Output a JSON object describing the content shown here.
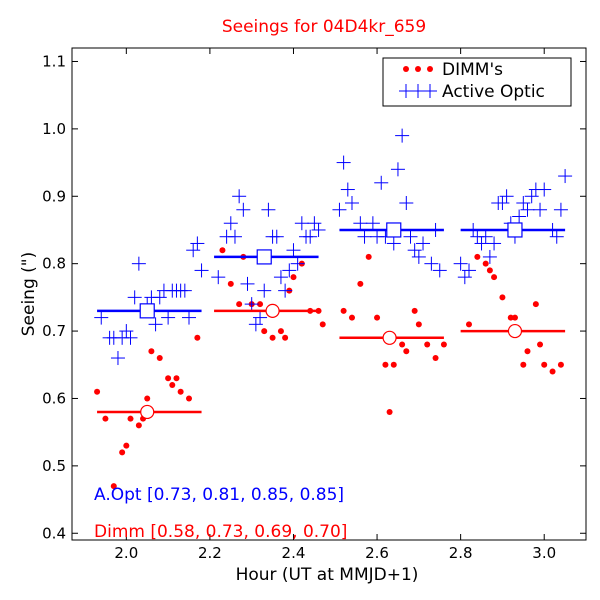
{
  "chart_data": {
    "type": "scatter",
    "title": "Seeings for 04D4kr_659",
    "xlabel": "Hour (UT at MMJD+1)",
    "ylabel": "Seeing (\")",
    "xlim": [
      1.87,
      3.1
    ],
    "ylim": [
      0.39,
      1.12
    ],
    "xticks": [
      2.0,
      2.2,
      2.4,
      2.6,
      2.8,
      3.0
    ],
    "xtick_labels": [
      "2.0",
      "2.2",
      "2.4",
      "2.6",
      "2.8",
      "3.0"
    ],
    "yticks": [
      0.4,
      0.5,
      0.6,
      0.7,
      0.8,
      0.9,
      1.0,
      1.1
    ],
    "ytick_labels": [
      "0.4",
      "0.5",
      "0.6",
      "0.7",
      "0.8",
      "0.9",
      "1.0",
      "1.1"
    ],
    "legend_position": "top-right",
    "colors": {
      "dimm": "#ff0000",
      "active_optic": "#0000ff",
      "title": "#ff0000",
      "axes": "#000000"
    },
    "series": [
      {
        "name": "DIMM's",
        "marker": "dot",
        "color": "#ff0000",
        "points": [
          [
            1.93,
            0.61
          ],
          [
            1.95,
            0.57
          ],
          [
            1.97,
            0.47
          ],
          [
            1.99,
            0.52
          ],
          [
            2.0,
            0.53
          ],
          [
            2.01,
            0.57
          ],
          [
            2.03,
            0.56
          ],
          [
            2.04,
            0.57
          ],
          [
            2.05,
            0.6
          ],
          [
            2.06,
            0.67
          ],
          [
            2.08,
            0.66
          ],
          [
            2.1,
            0.63
          ],
          [
            2.11,
            0.62
          ],
          [
            2.12,
            0.63
          ],
          [
            2.13,
            0.61
          ],
          [
            2.15,
            0.6
          ],
          [
            2.17,
            0.69
          ],
          [
            2.23,
            0.82
          ],
          [
            2.25,
            0.77
          ],
          [
            2.27,
            0.74
          ],
          [
            2.28,
            0.81
          ],
          [
            2.3,
            0.74
          ],
          [
            2.32,
            0.74
          ],
          [
            2.33,
            0.7
          ],
          [
            2.35,
            0.69
          ],
          [
            2.37,
            0.7
          ],
          [
            2.38,
            0.69
          ],
          [
            2.39,
            0.76
          ],
          [
            2.4,
            0.78
          ],
          [
            2.42,
            0.8
          ],
          [
            2.44,
            0.73
          ],
          [
            2.46,
            0.73
          ],
          [
            2.47,
            0.71
          ],
          [
            2.52,
            0.73
          ],
          [
            2.54,
            0.72
          ],
          [
            2.56,
            0.77
          ],
          [
            2.58,
            0.81
          ],
          [
            2.6,
            0.72
          ],
          [
            2.62,
            0.65
          ],
          [
            2.63,
            0.58
          ],
          [
            2.64,
            0.65
          ],
          [
            2.66,
            0.68
          ],
          [
            2.67,
            0.67
          ],
          [
            2.69,
            0.73
          ],
          [
            2.7,
            0.71
          ],
          [
            2.72,
            0.68
          ],
          [
            2.74,
            0.66
          ],
          [
            2.76,
            0.68
          ],
          [
            2.82,
            0.71
          ],
          [
            2.84,
            0.81
          ],
          [
            2.86,
            0.8
          ],
          [
            2.87,
            0.79
          ],
          [
            2.88,
            0.78
          ],
          [
            2.9,
            0.75
          ],
          [
            2.92,
            0.72
          ],
          [
            2.93,
            0.72
          ],
          [
            2.95,
            0.65
          ],
          [
            2.96,
            0.67
          ],
          [
            2.98,
            0.74
          ],
          [
            2.99,
            0.68
          ],
          [
            3.0,
            0.65
          ],
          [
            3.02,
            0.64
          ],
          [
            3.04,
            0.65
          ]
        ]
      },
      {
        "name": "Active Optic",
        "marker": "plus",
        "color": "#0000ff",
        "points": [
          [
            1.94,
            0.72
          ],
          [
            1.96,
            0.69
          ],
          [
            1.97,
            0.69
          ],
          [
            1.98,
            0.66
          ],
          [
            1.99,
            0.69
          ],
          [
            2.0,
            0.7
          ],
          [
            2.01,
            0.69
          ],
          [
            2.02,
            0.75
          ],
          [
            2.03,
            0.8
          ],
          [
            2.04,
            0.73
          ],
          [
            2.05,
            0.74
          ],
          [
            2.06,
            0.75
          ],
          [
            2.07,
            0.71
          ],
          [
            2.08,
            0.75
          ],
          [
            2.09,
            0.76
          ],
          [
            2.1,
            0.72
          ],
          [
            2.11,
            0.76
          ],
          [
            2.12,
            0.76
          ],
          [
            2.13,
            0.76
          ],
          [
            2.14,
            0.76
          ],
          [
            2.15,
            0.72
          ],
          [
            2.16,
            0.82
          ],
          [
            2.17,
            0.83
          ],
          [
            2.18,
            0.79
          ],
          [
            2.22,
            0.78
          ],
          [
            2.24,
            0.84
          ],
          [
            2.25,
            0.86
          ],
          [
            2.26,
            0.84
          ],
          [
            2.27,
            0.9
          ],
          [
            2.28,
            0.88
          ],
          [
            2.29,
            0.77
          ],
          [
            2.3,
            0.74
          ],
          [
            2.31,
            0.71
          ],
          [
            2.32,
            0.72
          ],
          [
            2.33,
            0.76
          ],
          [
            2.34,
            0.88
          ],
          [
            2.35,
            0.84
          ],
          [
            2.36,
            0.84
          ],
          [
            2.37,
            0.78
          ],
          [
            2.38,
            0.76
          ],
          [
            2.39,
            0.79
          ],
          [
            2.4,
            0.82
          ],
          [
            2.41,
            0.8
          ],
          [
            2.42,
            0.86
          ],
          [
            2.43,
            0.84
          ],
          [
            2.44,
            0.84
          ],
          [
            2.45,
            0.86
          ],
          [
            2.46,
            0.85
          ],
          [
            2.51,
            0.88
          ],
          [
            2.52,
            0.95
          ],
          [
            2.53,
            0.91
          ],
          [
            2.54,
            0.89
          ],
          [
            2.56,
            0.86
          ],
          [
            2.57,
            0.84
          ],
          [
            2.59,
            0.86
          ],
          [
            2.6,
            0.84
          ],
          [
            2.61,
            0.92
          ],
          [
            2.62,
            0.84
          ],
          [
            2.64,
            0.83
          ],
          [
            2.65,
            0.94
          ],
          [
            2.66,
            0.99
          ],
          [
            2.67,
            0.89
          ],
          [
            2.68,
            0.84
          ],
          [
            2.69,
            0.82
          ],
          [
            2.7,
            0.81
          ],
          [
            2.71,
            0.83
          ],
          [
            2.73,
            0.8
          ],
          [
            2.74,
            0.85
          ],
          [
            2.75,
            0.79
          ],
          [
            2.8,
            0.8
          ],
          [
            2.81,
            0.78
          ],
          [
            2.82,
            0.79
          ],
          [
            2.83,
            0.85
          ],
          [
            2.84,
            0.84
          ],
          [
            2.85,
            0.83
          ],
          [
            2.86,
            0.84
          ],
          [
            2.87,
            0.81
          ],
          [
            2.88,
            0.83
          ],
          [
            2.89,
            0.89
          ],
          [
            2.9,
            0.89
          ],
          [
            2.91,
            0.9
          ],
          [
            2.92,
            0.86
          ],
          [
            2.93,
            0.84
          ],
          [
            2.94,
            0.87
          ],
          [
            2.95,
            0.89
          ],
          [
            2.96,
            0.88
          ],
          [
            2.97,
            0.9
          ],
          [
            2.98,
            0.91
          ],
          [
            2.99,
            0.88
          ],
          [
            3.0,
            0.91
          ],
          [
            3.02,
            0.85
          ],
          [
            3.03,
            0.84
          ],
          [
            3.04,
            0.88
          ],
          [
            3.05,
            0.93
          ]
        ]
      }
    ],
    "binned_medians": [
      {
        "name": "DIMM median",
        "color": "#ff0000",
        "marker": "circle",
        "bins": [
          {
            "x_start": 1.93,
            "x_end": 2.18,
            "x_center": 2.05,
            "value": 0.58
          },
          {
            "x_start": 2.21,
            "x_end": 2.46,
            "x_center": 2.35,
            "value": 0.73
          },
          {
            "x_start": 2.51,
            "x_end": 2.76,
            "x_center": 2.63,
            "value": 0.69
          },
          {
            "x_start": 2.8,
            "x_end": 3.05,
            "x_center": 2.93,
            "value": 0.7
          }
        ]
      },
      {
        "name": "Active Optic median",
        "color": "#0000ff",
        "marker": "square",
        "bins": [
          {
            "x_start": 1.93,
            "x_end": 2.18,
            "x_center": 2.05,
            "value": 0.73
          },
          {
            "x_start": 2.21,
            "x_end": 2.46,
            "x_center": 2.33,
            "value": 0.81
          },
          {
            "x_start": 2.51,
            "x_end": 2.76,
            "x_center": 2.64,
            "value": 0.85
          },
          {
            "x_start": 2.8,
            "x_end": 3.05,
            "x_center": 2.93,
            "value": 0.85
          }
        ]
      }
    ],
    "legend": [
      {
        "label": "DIMM's",
        "marker": "dot",
        "color": "#ff0000"
      },
      {
        "label": "Active Optic",
        "marker": "plus",
        "color": "#0000ff"
      }
    ],
    "annotations": [
      {
        "text": "A.Opt [0.73, 0.81, 0.85, 0.85]",
        "color": "#0000ff"
      },
      {
        "text": "Dimm [0.58, 0.73, 0.69, 0.70]",
        "color": "#ff0000"
      }
    ]
  }
}
